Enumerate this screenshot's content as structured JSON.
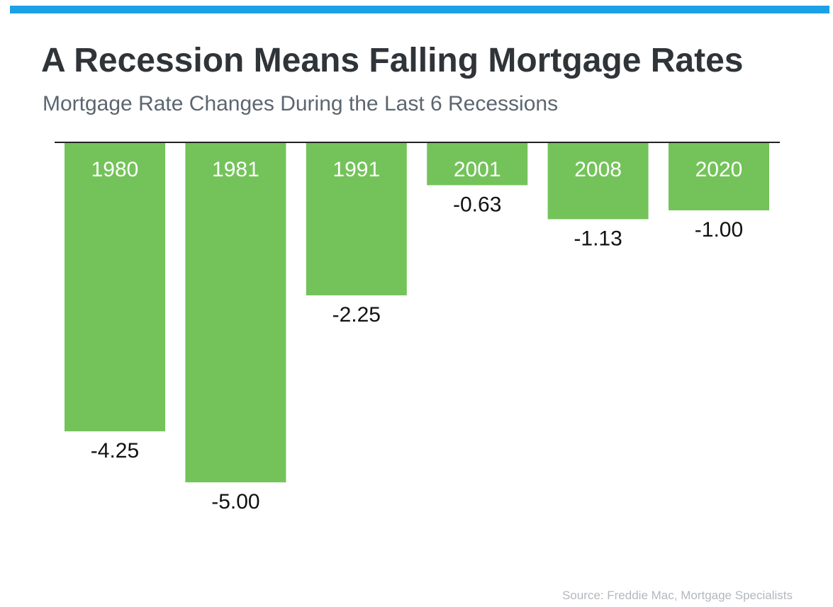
{
  "header": {
    "title": "A Recession Means Falling Mortgage Rates",
    "subtitle": "Mortgage Rate Changes During the Last 6 Recessions"
  },
  "footer": {
    "source": "Source: Freddie Mac, Mortgage Specialists"
  },
  "colors": {
    "accent_bar": "#1da1e6",
    "bar_fill": "#74c35a",
    "title_text": "#2f3439",
    "subtitle_text": "#5c6670",
    "axis_line": "#222222"
  },
  "chart_data": {
    "type": "bar",
    "title": "A Recession Means Falling Mortgage Rates",
    "subtitle": "Mortgage Rate Changes During the Last 6 Recessions",
    "categories": [
      "1980",
      "1981",
      "1991",
      "2001",
      "2008",
      "2020"
    ],
    "values": [
      -4.25,
      -5.0,
      -2.25,
      -0.63,
      -1.13,
      -1.0
    ],
    "value_labels": [
      "-4.25",
      "-5.00",
      "-2.25",
      "-0.63",
      "-1.13",
      "-1.00"
    ],
    "xlabel": "",
    "ylabel": "",
    "ylim": [
      -5,
      0
    ],
    "grid": false,
    "legend": "none",
    "orientation": "bars hang down from a baseline at 0, category labels inside the top of each bar, value labels below each bar"
  }
}
